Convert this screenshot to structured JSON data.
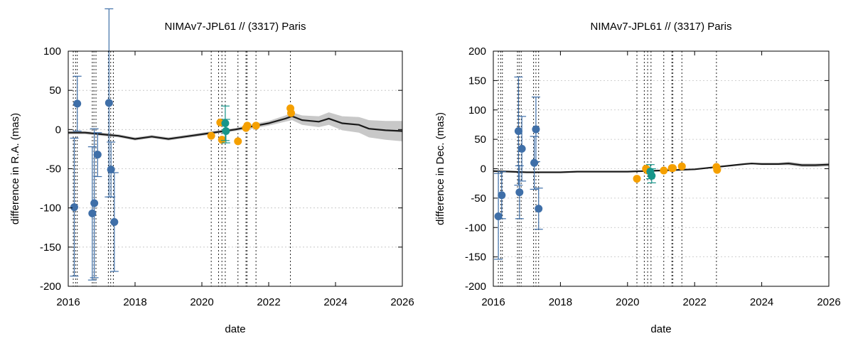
{
  "chart_data": [
    {
      "type": "scatter",
      "title": "NIMAv7-JPL61 // (3317) Paris",
      "xlabel": "date",
      "ylabel": "difference in R.A. (mas)",
      "xlim": [
        2016,
        2026
      ],
      "ylim": [
        -200,
        100
      ],
      "x_ticks": [
        2016,
        2018,
        2020,
        2022,
        2024,
        2026
      ],
      "y_ticks": [
        -200,
        -150,
        -100,
        -50,
        0,
        50,
        100
      ],
      "grid": "horizontal dashed",
      "event_lines_x": [
        2016.15,
        2016.22,
        2016.27,
        2016.72,
        2016.77,
        2016.83,
        2017.2,
        2017.27,
        2017.35,
        2020.28,
        2020.5,
        2020.6,
        2020.7,
        2021.08,
        2021.32,
        2021.35,
        2021.62,
        2022.65
      ],
      "model_curve": {
        "color": "#1a1a1a",
        "band_color": "#c8c8c8",
        "x": [
          2016.0,
          2016.5,
          2017.0,
          2017.5,
          2018.0,
          2018.5,
          2019.0,
          2019.5,
          2020.0,
          2020.5,
          2021.0,
          2021.5,
          2022.0,
          2022.5,
          2022.7,
          2023.0,
          2023.5,
          2023.8,
          2024.2,
          2024.7,
          2025.0,
          2025.5,
          2026.0
        ],
        "y": [
          -4,
          -4,
          -6,
          -8,
          -12,
          -9,
          -12,
          -9,
          -6,
          -3,
          0,
          4,
          8,
          14,
          17,
          12,
          10,
          14,
          8,
          6,
          1,
          -1,
          -2
        ],
        "band_halfwidth": [
          2,
          2,
          2,
          2,
          2,
          2,
          2,
          2,
          2,
          2,
          2,
          3,
          3,
          4,
          5,
          6,
          7,
          8,
          9,
          10,
          11,
          12,
          13
        ]
      },
      "series": [
        {
          "color": "#3f6fa8",
          "points": [
            {
              "x": 2016.18,
              "y": -99,
              "err": 88
            },
            {
              "x": 2016.27,
              "y": 33,
              "err": 35
            },
            {
              "x": 2016.72,
              "y": -107,
              "err": 85
            },
            {
              "x": 2016.78,
              "y": -94,
              "err": 95
            },
            {
              "x": 2016.88,
              "y": -32,
              "err": 28
            },
            {
              "x": 2017.22,
              "y": 34,
              "err": 120
            },
            {
              "x": 2017.28,
              "y": -51,
              "err": 35
            },
            {
              "x": 2017.38,
              "y": -118,
              "err": 63
            }
          ]
        },
        {
          "color": "#f5a000",
          "points": [
            {
              "x": 2020.28,
              "y": -8,
              "err": 0
            },
            {
              "x": 2020.55,
              "y": 9,
              "err": 0
            },
            {
              "x": 2020.6,
              "y": -13,
              "err": 0
            },
            {
              "x": 2021.08,
              "y": -15,
              "err": 0
            },
            {
              "x": 2021.32,
              "y": 2,
              "err": 0
            },
            {
              "x": 2021.36,
              "y": 5,
              "err": 0
            },
            {
              "x": 2021.62,
              "y": 5,
              "err": 0
            },
            {
              "x": 2022.65,
              "y": 27,
              "err": 0
            },
            {
              "x": 2022.67,
              "y": 21,
              "err": 0
            }
          ]
        },
        {
          "color": "#17958a",
          "points": [
            {
              "x": 2020.7,
              "y": 8,
              "err": 22
            },
            {
              "x": 2020.72,
              "y": -2,
              "err": 15
            }
          ]
        }
      ]
    },
    {
      "type": "scatter",
      "title": "NIMAv7-JPL61 // (3317) Paris",
      "xlabel": "date",
      "ylabel": "difference in Dec. (mas)",
      "xlim": [
        2016,
        2026
      ],
      "ylim": [
        -200,
        200
      ],
      "x_ticks": [
        2016,
        2018,
        2020,
        2022,
        2024,
        2026
      ],
      "y_ticks": [
        -200,
        -150,
        -100,
        -50,
        0,
        50,
        100,
        150,
        200
      ],
      "grid": "horizontal dashed",
      "event_lines_x": [
        2016.15,
        2016.22,
        2016.27,
        2016.72,
        2016.77,
        2016.83,
        2017.2,
        2017.27,
        2017.35,
        2020.28,
        2020.5,
        2020.6,
        2020.7,
        2021.08,
        2021.32,
        2021.35,
        2021.62,
        2022.65
      ],
      "model_curve": {
        "color": "#1a1a1a",
        "band_color": "#c8c8c8",
        "x": [
          2016.0,
          2016.5,
          2017.0,
          2017.5,
          2018.0,
          2018.5,
          2019.0,
          2019.5,
          2020.0,
          2020.5,
          2021.0,
          2021.5,
          2022.0,
          2022.5,
          2023.0,
          2023.5,
          2023.7,
          2024.0,
          2024.5,
          2024.8,
          2025.2,
          2025.6,
          2026.0
        ],
        "y": [
          -4,
          -5,
          -6,
          -6,
          -6,
          -5,
          -5,
          -5,
          -5,
          -4,
          -3,
          -2,
          -1,
          2,
          5,
          8,
          9,
          8,
          8,
          9,
          6,
          6,
          7
        ],
        "band_halfwidth": [
          1,
          1,
          1,
          1,
          1,
          1,
          1,
          1,
          1,
          1,
          1,
          1,
          1,
          1,
          1,
          1,
          1,
          2,
          2,
          3,
          3,
          3,
          3
        ]
      },
      "series": [
        {
          "color": "#3f6fa8",
          "points": [
            {
              "x": 2016.15,
              "y": -81,
              "err": 73
            },
            {
              "x": 2016.25,
              "y": -45,
              "err": 40
            },
            {
              "x": 2016.75,
              "y": 64,
              "err": 92
            },
            {
              "x": 2016.78,
              "y": -40,
              "err": 45
            },
            {
              "x": 2016.85,
              "y": 34,
              "err": 55
            },
            {
              "x": 2017.22,
              "y": 10,
              "err": 45
            },
            {
              "x": 2017.27,
              "y": 67,
              "err": 55
            },
            {
              "x": 2017.35,
              "y": -68,
              "err": 35
            }
          ]
        },
        {
          "color": "#f5a000",
          "points": [
            {
              "x": 2020.28,
              "y": -17,
              "err": 0
            },
            {
              "x": 2020.55,
              "y": 0,
              "err": 0
            },
            {
              "x": 2020.6,
              "y": -3,
              "err": 0
            },
            {
              "x": 2021.08,
              "y": -3,
              "err": 0
            },
            {
              "x": 2021.32,
              "y": 1,
              "err": 0
            },
            {
              "x": 2021.35,
              "y": 1,
              "err": 0
            },
            {
              "x": 2021.62,
              "y": 4,
              "err": 0
            },
            {
              "x": 2022.65,
              "y": 3,
              "err": 0
            },
            {
              "x": 2022.67,
              "y": -2,
              "err": 0
            }
          ]
        },
        {
          "color": "#17958a",
          "points": [
            {
              "x": 2020.68,
              "y": -5,
              "err": 12
            },
            {
              "x": 2020.72,
              "y": -12,
              "err": 12
            }
          ]
        }
      ]
    }
  ]
}
